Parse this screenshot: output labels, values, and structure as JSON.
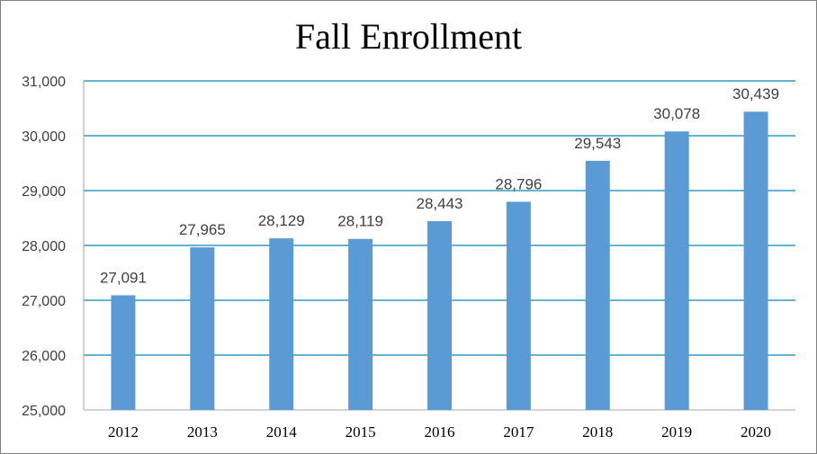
{
  "chart_data": {
    "type": "bar",
    "title": "Fall Enrollment",
    "xlabel": "",
    "ylabel": "",
    "categories": [
      "2012",
      "2013",
      "2014",
      "2015",
      "2016",
      "2017",
      "2018",
      "2019",
      "2020"
    ],
    "values": [
      27091,
      27965,
      28129,
      28119,
      28443,
      28796,
      29543,
      30078,
      30439
    ],
    "data_labels": [
      "27,091",
      "27,965",
      "28,129",
      "28,119",
      "28,443",
      "28,796",
      "29,543",
      "30,078",
      "30,439"
    ],
    "ylim": [
      25000,
      31000
    ],
    "yticks": [
      25000,
      26000,
      27000,
      28000,
      29000,
      30000,
      31000
    ],
    "ytick_labels": [
      "25,000",
      "26,000",
      "27,000",
      "28,000",
      "29,000",
      "30,000",
      "31,000"
    ],
    "grid": true,
    "legend": "none",
    "colors": {
      "bar": "#5b9bd5",
      "grid": "#2e9bbf",
      "axis": "#a6a6a6"
    }
  }
}
